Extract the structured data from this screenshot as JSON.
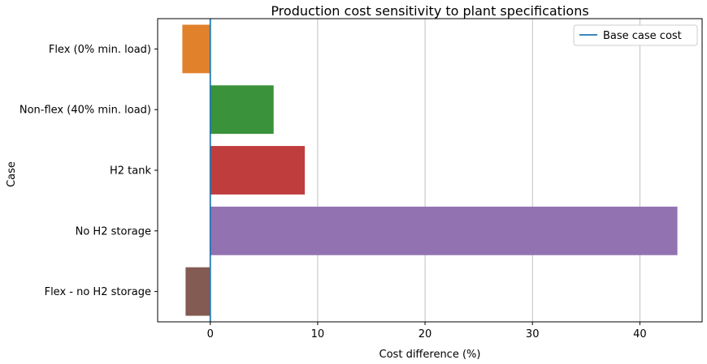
{
  "chart_data": {
    "type": "bar",
    "orientation": "horizontal",
    "title": "Production cost sensitivity to plant specifications",
    "xlabel": "Cost difference (%)",
    "ylabel": "Case",
    "xlim": [
      -4.9,
      45.8
    ],
    "xticks": [
      0,
      10,
      20,
      30,
      40
    ],
    "grid": "x",
    "categories": [
      "Flex (0% min. load)",
      "Non-flex (40% min. load)",
      "H2 tank",
      "No H2 storage",
      "Flex - no H2 storage"
    ],
    "values": [
      -2.6,
      5.9,
      8.8,
      43.5,
      -2.3
    ],
    "colors": [
      "#e1812c",
      "#3a923a",
      "#c03d3e",
      "#9372b2",
      "#845b53"
    ],
    "reference_line": {
      "x": 0,
      "label": "Base case cost",
      "color": "#1f77b4"
    },
    "legend": {
      "position": "top-right",
      "entries": [
        "Base case cost"
      ]
    }
  }
}
